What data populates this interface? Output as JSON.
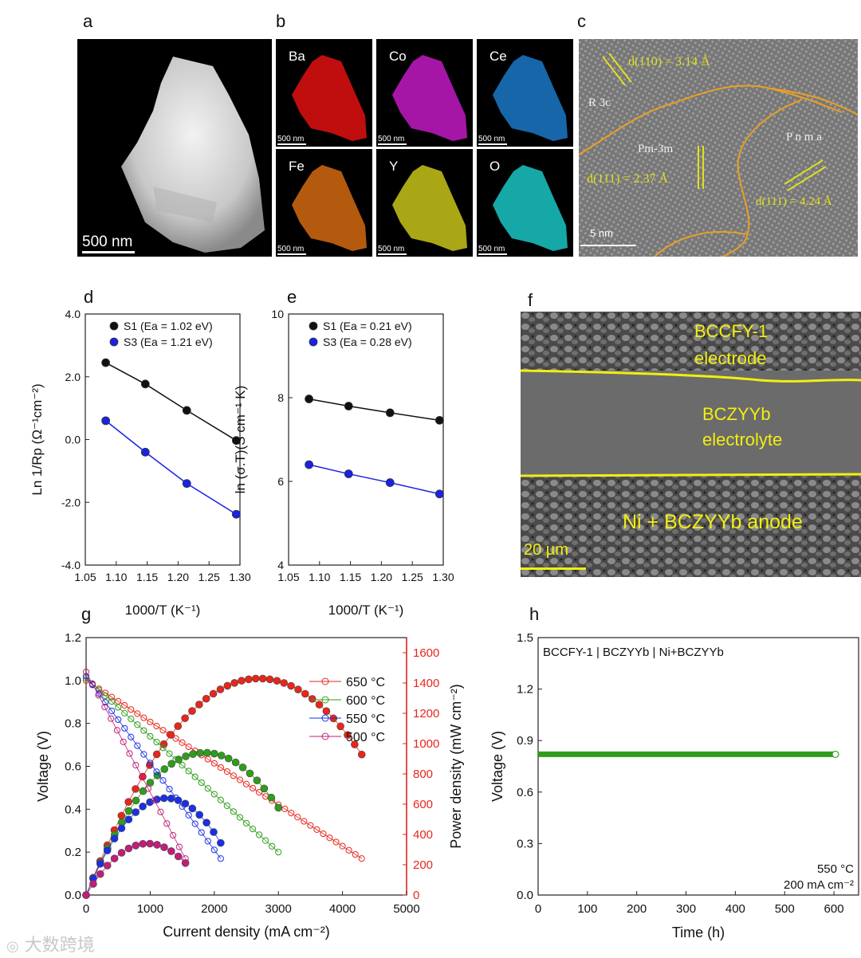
{
  "panels": {
    "a": {
      "letter": "a",
      "scale_bar": "500 nm"
    },
    "b": {
      "letter": "b",
      "scale_bar": "500 nm",
      "maps": [
        {
          "element": "Ba",
          "color": "#e21010"
        },
        {
          "element": "Co",
          "color": "#c21ac4"
        },
        {
          "element": "Ce",
          "color": "#1b78c8"
        },
        {
          "element": "Fe",
          "color": "#d36a12"
        },
        {
          "element": "Y",
          "color": "#c8c41a"
        },
        {
          "element": "O",
          "color": "#1ac4c4"
        }
      ]
    },
    "c": {
      "letter": "c",
      "scale_bar": "5 nm",
      "phase_r3c": "R 3c",
      "phase_pm3m": "Pm-3m",
      "phase_pnma": "P n m a",
      "d1_label": "d(110) = 3.14 Å",
      "d2_label": "d(111) = 2.37 Å",
      "d3_label": "d(111) = 4.24 Å"
    },
    "f": {
      "letter": "f",
      "scale_bar": "20 µm",
      "layer1_line1": "BCCFY-1",
      "layer1_line2": "electrode",
      "layer2_line1": "BCZYYb",
      "layer2_line2": "electrolyte",
      "layer3": "Ni + BCZYYb anode"
    }
  },
  "chart_data": [
    {
      "id": "d",
      "letter": "d",
      "type": "scatter",
      "xlabel": "1000/T (K⁻¹)",
      "ylabel": "Ln 1/Rp (Ω⁻¹cm⁻²)",
      "xlim": [
        1.05,
        1.3
      ],
      "ylim": [
        -4.0,
        4.0
      ],
      "xticks": [
        "1.05",
        "1.10",
        "1.15",
        "1.20",
        "1.25",
        "1.30"
      ],
      "yticks": [
        "-4.0",
        "-2.0",
        "0.0",
        "2.0",
        "4.0"
      ],
      "series": [
        {
          "name": "S1 (Ea = 1.02 eV)",
          "color": "#111111",
          "x": [
            1.083,
            1.147,
            1.214,
            1.294
          ],
          "y": [
            2.45,
            1.77,
            0.93,
            -0.03
          ]
        },
        {
          "name": "S3 (Ea = 1.21 eV)",
          "color": "#1a22e6",
          "x": [
            1.083,
            1.147,
            1.214,
            1.294
          ],
          "y": [
            0.6,
            -0.4,
            -1.4,
            -2.38
          ]
        }
      ]
    },
    {
      "id": "e",
      "letter": "e",
      "type": "scatter",
      "xlabel": "1000/T (K⁻¹)",
      "ylabel": "ln (σ.T)(S cm⁻¹ K)",
      "xlim": [
        1.05,
        1.3
      ],
      "ylim": [
        4,
        10
      ],
      "xticks": [
        "1.05",
        "1.10",
        "1.15",
        "1.20",
        "1.25",
        "1.30"
      ],
      "yticks": [
        "4",
        "6",
        "8",
        "10"
      ],
      "series": [
        {
          "name": "S1 (Ea = 0.21 eV)",
          "color": "#111111",
          "x": [
            1.083,
            1.147,
            1.214,
            1.294
          ],
          "y": [
            7.97,
            7.8,
            7.64,
            7.46
          ]
        },
        {
          "name": "S3 (Ea = 0.28 eV)",
          "color": "#1a22e6",
          "x": [
            1.083,
            1.147,
            1.214,
            1.294
          ],
          "y": [
            6.4,
            6.18,
            5.97,
            5.7
          ]
        }
      ]
    },
    {
      "id": "g",
      "letter": "g",
      "type": "line",
      "xlabel": "Current density (mA cm⁻²)",
      "ylabel": "Voltage (V)",
      "y2label": "Power density (mW cm⁻²)",
      "xlim": [
        0,
        5000
      ],
      "ylim": [
        0,
        1.2
      ],
      "y2lim": [
        0,
        1700
      ],
      "xticks": [
        "0",
        "1000",
        "2000",
        "3000",
        "4000",
        "5000"
      ],
      "yticks": [
        "0.0",
        "0.2",
        "0.4",
        "0.6",
        "0.8",
        "1.0",
        "1.2"
      ],
      "y2ticks": [
        "0",
        "200",
        "400",
        "600",
        "800",
        "1000",
        "1200",
        "1400",
        "1600"
      ],
      "series": [
        {
          "name": "650 °C",
          "color": "#e8261c",
          "imax": 4300,
          "v0": 1.0,
          "vend": 0.17,
          "pmax": 1430,
          "ipk": 2700
        },
        {
          "name": "600 °C",
          "color": "#2e9e1a",
          "imax": 3000,
          "v0": 1.01,
          "vend": 0.2,
          "pmax": 940,
          "ipk": 1850
        },
        {
          "name": "550 °C",
          "color": "#1a2fe6",
          "imax": 2100,
          "v0": 1.02,
          "vend": 0.17,
          "pmax": 640,
          "ipk": 1250
        },
        {
          "name": "500 °C",
          "color": "#c01e78",
          "imax": 1550,
          "v0": 1.04,
          "vend": 0.17,
          "pmax": 340,
          "ipk": 960
        }
      ]
    },
    {
      "id": "h",
      "letter": "h",
      "type": "line",
      "title": "BCCFY-1 | BCZYYb | Ni+BCZYYb",
      "xlabel": "Time (h)",
      "ylabel": "Voltage (V)",
      "xlim": [
        0,
        650
      ],
      "ylim": [
        0.0,
        1.5
      ],
      "xticks": [
        "0",
        "100",
        "200",
        "300",
        "400",
        "500",
        "600"
      ],
      "yticks": [
        "0.0",
        "0.3",
        "0.6",
        "0.9",
        "1.2",
        "1.5"
      ],
      "annotation1": "550 °C",
      "annotation2": "200 mA cm⁻²",
      "series": [
        {
          "name": "voltage",
          "color": "#2e9e1a",
          "t_end": 603,
          "v": 0.82
        }
      ]
    }
  ],
  "watermark": "大数跨境"
}
